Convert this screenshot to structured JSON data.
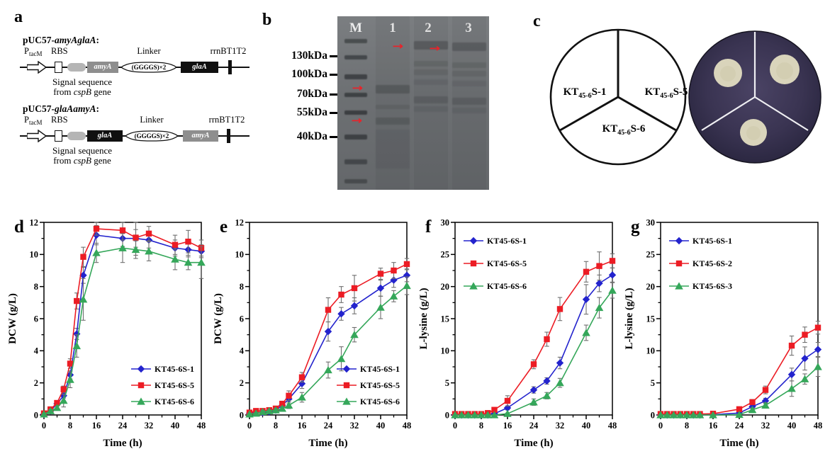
{
  "panel_letters": {
    "a": "a",
    "b": "b",
    "c": "c",
    "d": "d",
    "e": "e",
    "f": "f",
    "g": "g"
  },
  "colors": {
    "series_blue": "#2323cd",
    "series_red": "#ec1c24",
    "series_green": "#35a75a",
    "error_bar": "#6f6f6f",
    "arrow_red": "#e8232a",
    "gel_background": "#6e7173",
    "gene_box_gray": "#8e8e8e",
    "gene_box_black": "#101010",
    "signal_oval_gray": "#b5b5b5",
    "dish_background": "#3a3452",
    "colony_cream": "#d9d4bb"
  },
  "panel_a": {
    "constructs": [
      {
        "title_prefix": "pUC57-",
        "title_gene": "amyAglaA",
        "title_colon": ":",
        "promoter": "P",
        "promoter_sub": "tacM",
        "rbs_label": "RBS",
        "gene1": "amyA",
        "linker_label": "Linker",
        "linker_text": "(GGGGS)×2",
        "gene2": "glaA",
        "terminator_label": "rrnBT1T2",
        "caption_line1": "Signal sequence",
        "caption_from": "from ",
        "caption_gene": "cspB",
        "caption_tail": " gene"
      },
      {
        "title_prefix": "pUC57-",
        "title_gene": "glaAamyA",
        "title_colon": ":",
        "promoter": "P",
        "promoter_sub": "tacM",
        "rbs_label": "RBS",
        "gene1": "glaA",
        "linker_label": "Linker",
        "linker_text": "(GGGGS)×2",
        "gene2": "amyA",
        "terminator_label": "rrnBT1T2",
        "caption_line1": "Signal sequence",
        "caption_from": "from ",
        "caption_gene": "cspB",
        "caption_tail": " gene"
      }
    ]
  },
  "panel_b": {
    "lanes": [
      "M",
      "1",
      "2",
      "3"
    ],
    "markers": [
      "130kDa",
      "100kDa",
      "70kDa",
      "55kDa",
      "40kDa"
    ],
    "band_arrow_icon": "→"
  },
  "panel_c": {
    "sectors": [
      {
        "pre": "KT",
        "sub": "45-6",
        "post": "S-1"
      },
      {
        "pre": "KT",
        "sub": "45-6",
        "post": "S-5"
      },
      {
        "pre": "KT",
        "sub": "45-6",
        "post": "S-6"
      }
    ]
  },
  "chart_data": [
    {
      "panel": "d",
      "type": "line",
      "xlabel": "Time (h)",
      "ylabel": "DCW (g/L)",
      "xlim": [
        0,
        48
      ],
      "ylim": [
        0,
        12
      ],
      "xticks": [
        0,
        8,
        16,
        24,
        32,
        40,
        48
      ],
      "x_minor_step": 4,
      "yticks": [
        0,
        2,
        4,
        6,
        8,
        10,
        12
      ],
      "y_minor_step": 1,
      "legend_position": "bottom-right",
      "x": [
        0,
        2,
        4,
        6,
        8,
        10,
        12,
        16,
        24,
        28,
        32,
        40,
        44,
        48
      ],
      "series": [
        {
          "name": "KT45-6S-1",
          "color": "#2323cd",
          "marker": "diamond",
          "values": [
            0.05,
            0.25,
            0.7,
            1.2,
            2.5,
            5.05,
            8.7,
            11.2,
            11.0,
            11.0,
            10.9,
            10.4,
            10.3,
            10.2
          ],
          "errors": [
            0.05,
            0.08,
            0.1,
            0.15,
            0.25,
            0.35,
            0.5,
            0.6,
            0.5,
            0.55,
            0.5,
            0.5,
            0.45,
            0.4
          ]
        },
        {
          "name": "KT45-6S-5",
          "color": "#ec1c24",
          "marker": "square",
          "values": [
            0.1,
            0.35,
            0.75,
            1.6,
            3.2,
            7.1,
            9.85,
            11.6,
            11.5,
            11.05,
            11.3,
            10.6,
            10.8,
            10.4
          ],
          "errors": [
            0.05,
            0.08,
            0.12,
            0.2,
            0.3,
            0.5,
            0.6,
            0.4,
            0.6,
            1.1,
            0.45,
            0.6,
            0.7,
            0.5
          ]
        },
        {
          "name": "KT45-6S-6",
          "color": "#35a75a",
          "marker": "triangle",
          "values": [
            0.05,
            0.25,
            0.45,
            0.9,
            2.2,
            4.3,
            7.2,
            10.1,
            10.4,
            10.3,
            10.2,
            9.7,
            9.5,
            9.5
          ],
          "errors": [
            0.05,
            0.08,
            0.1,
            0.4,
            0.5,
            0.7,
            1.3,
            0.6,
            0.9,
            0.55,
            0.6,
            0.65,
            0.45,
            1.0
          ]
        }
      ]
    },
    {
      "panel": "e",
      "type": "line",
      "xlabel": "Time (h)",
      "ylabel": "DCW (g/L)",
      "xlim": [
        0,
        48
      ],
      "ylim": [
        0,
        12
      ],
      "xticks": [
        0,
        8,
        16,
        24,
        32,
        40,
        48
      ],
      "x_minor_step": 4,
      "yticks": [
        0,
        2,
        4,
        6,
        8,
        10,
        12
      ],
      "y_minor_step": 1,
      "legend_position": "bottom-right",
      "x": [
        0,
        2,
        4,
        6,
        8,
        10,
        12,
        16,
        24,
        28,
        32,
        40,
        44,
        48
      ],
      "series": [
        {
          "name": "KT45-6S-1",
          "color": "#2323cd",
          "marker": "diamond",
          "values": [
            0.1,
            0.15,
            0.15,
            0.2,
            0.3,
            0.6,
            1.0,
            1.95,
            5.2,
            6.3,
            6.8,
            7.9,
            8.4,
            8.7
          ],
          "errors": [
            0.05,
            0.05,
            0.05,
            0.08,
            0.1,
            0.15,
            0.3,
            0.3,
            0.6,
            0.4,
            0.5,
            0.5,
            0.45,
            0.4
          ]
        },
        {
          "name": "KT45-6S-5",
          "color": "#ec1c24",
          "marker": "square",
          "values": [
            0.15,
            0.25,
            0.25,
            0.3,
            0.4,
            0.7,
            1.2,
            2.35,
            6.55,
            7.5,
            7.9,
            8.8,
            9.0,
            9.4
          ],
          "errors": [
            0.05,
            0.05,
            0.08,
            0.08,
            0.12,
            0.15,
            0.3,
            0.3,
            0.75,
            0.5,
            0.8,
            0.35,
            0.5,
            0.35
          ]
        },
        {
          "name": "KT45-6S-6",
          "color": "#35a75a",
          "marker": "triangle",
          "values": [
            0.05,
            0.1,
            0.2,
            0.25,
            0.3,
            0.4,
            0.6,
            1.1,
            2.8,
            3.5,
            5.0,
            6.7,
            7.4,
            8.05
          ],
          "errors": [
            0.05,
            0.05,
            0.08,
            0.08,
            0.1,
            0.12,
            0.2,
            0.3,
            0.5,
            0.75,
            0.45,
            0.7,
            0.35,
            0.55
          ]
        }
      ]
    },
    {
      "panel": "f",
      "type": "line",
      "xlabel": "Time (h)",
      "ylabel": "L-lysine (g/L)",
      "xlim": [
        0,
        48
      ],
      "ylim": [
        0,
        30
      ],
      "xticks": [
        0,
        8,
        16,
        24,
        32,
        40,
        48
      ],
      "x_minor_step": 4,
      "yticks": [
        0,
        5,
        10,
        15,
        20,
        25,
        30
      ],
      "y_minor_step": 2.5,
      "legend_position": "top-left",
      "x": [
        0,
        2,
        4,
        6,
        8,
        10,
        12,
        16,
        24,
        28,
        32,
        40,
        44,
        48
      ],
      "series": [
        {
          "name": "KT45-6S-1",
          "color": "#2323cd",
          "marker": "diamond",
          "values": [
            0,
            0,
            0,
            0,
            0,
            0,
            0.2,
            1.1,
            3.9,
            5.3,
            8.1,
            18.0,
            20.5,
            21.8
          ],
          "errors": [
            0,
            0,
            0,
            0,
            0,
            0,
            0.1,
            0.3,
            0.5,
            0.5,
            0.9,
            2.3,
            1.3,
            1.1
          ]
        },
        {
          "name": "KT45-6S-5",
          "color": "#ec1c24",
          "marker": "square",
          "values": [
            0.15,
            0.15,
            0.15,
            0.15,
            0.15,
            0.3,
            0.8,
            2.2,
            7.9,
            11.8,
            16.5,
            22.3,
            23.2,
            24.0
          ],
          "errors": [
            0,
            0,
            0,
            0,
            0,
            0.1,
            0.2,
            0.8,
            0.7,
            1.1,
            1.8,
            1.6,
            2.2,
            1.1
          ]
        },
        {
          "name": "KT45-6S-6",
          "color": "#35a75a",
          "marker": "triangle",
          "values": [
            0,
            0,
            0,
            0,
            0,
            0,
            0,
            0.2,
            2.0,
            3.0,
            5.0,
            12.8,
            16.7,
            19.4
          ],
          "errors": [
            0,
            0,
            0,
            0,
            0,
            0,
            0,
            0.1,
            0.5,
            0.5,
            0.7,
            1.2,
            1.6,
            1.2
          ]
        }
      ]
    },
    {
      "panel": "g",
      "type": "line",
      "xlabel": "Time (h)",
      "ylabel": "L-lysine (g/L)",
      "xlim": [
        0,
        48
      ],
      "ylim": [
        0,
        30
      ],
      "xticks": [
        0,
        8,
        16,
        24,
        32,
        40,
        48
      ],
      "x_minor_step": 4,
      "yticks": [
        0,
        5,
        10,
        15,
        20,
        25,
        30
      ],
      "y_minor_step": 2.5,
      "legend_position": "top-left",
      "x": [
        0,
        2,
        4,
        6,
        8,
        10,
        12,
        16,
        24,
        28,
        32,
        40,
        44,
        48
      ],
      "series": [
        {
          "name": "KT45-6S-1",
          "color": "#2323cd",
          "marker": "diamond",
          "values": [
            0,
            0,
            0,
            0,
            0,
            0,
            0,
            0.05,
            0.3,
            1.3,
            2.2,
            6.3,
            8.8,
            10.2
          ],
          "errors": [
            0,
            0,
            0,
            0,
            0,
            0,
            0,
            0.05,
            0.15,
            0.3,
            0.4,
            1.0,
            1.8,
            1.1
          ]
        },
        {
          "name": "KT45-6S-2",
          "color": "#ec1c24",
          "marker": "square",
          "values": [
            0.15,
            0.15,
            0.15,
            0.15,
            0.15,
            0.15,
            0.15,
            0.2,
            0.9,
            2.0,
            3.9,
            10.8,
            12.5,
            13.6
          ],
          "errors": [
            0,
            0,
            0,
            0,
            0,
            0,
            0,
            0.1,
            0.3,
            0.4,
            0.6,
            1.5,
            1.2,
            1.0
          ]
        },
        {
          "name": "KT45-6S-3",
          "color": "#35a75a",
          "marker": "triangle",
          "values": [
            0,
            0,
            0,
            0,
            0,
            0,
            0,
            0,
            0.05,
            0.8,
            1.5,
            4.1,
            5.6,
            7.5
          ],
          "errors": [
            0,
            0,
            0,
            0,
            0,
            0,
            0,
            0,
            0.1,
            0.3,
            0.4,
            1.2,
            0.8,
            1.5
          ]
        }
      ]
    }
  ]
}
